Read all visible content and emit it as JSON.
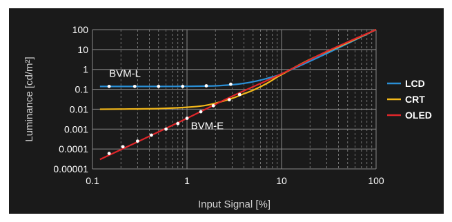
{
  "chart_data": {
    "type": "line",
    "xlabel": "Input Signal [%]",
    "ylabel": "Luminance [cd/m²]",
    "x_scale": "log",
    "y_scale": "log",
    "xlim": [
      0.1,
      100
    ],
    "ylim": [
      1e-05,
      100
    ],
    "x_ticks": [
      "0.1",
      "1",
      "10",
      "100"
    ],
    "y_ticks": [
      "100",
      "10",
      "1",
      "0.1",
      "0.01",
      "0.001",
      "0.0001",
      "0.00001"
    ],
    "grid": true,
    "legend_position": "right",
    "colors": {
      "background": "#1a1a1a",
      "grid": "#8a8a8a",
      "LCD": "#2a8fd6",
      "CRT": "#f3b81a",
      "OLED": "#e0262a",
      "marker": "#ffffff"
    },
    "series": [
      {
        "name": "LCD",
        "x": [
          0.12,
          0.2,
          0.5,
          1,
          2,
          3,
          4,
          5,
          6,
          8,
          10,
          20,
          50,
          100
        ],
        "y": [
          0.14,
          0.14,
          0.14,
          0.142,
          0.15,
          0.17,
          0.2,
          0.24,
          0.29,
          0.42,
          0.6,
          2.6,
          20,
          100
        ]
      },
      {
        "name": "CRT",
        "x": [
          0.12,
          0.2,
          0.5,
          1,
          1.5,
          2,
          3,
          4,
          5,
          7,
          10,
          20,
          50,
          100
        ],
        "y": [
          0.01,
          0.0102,
          0.0108,
          0.0125,
          0.015,
          0.02,
          0.035,
          0.06,
          0.09,
          0.2,
          0.55,
          3.2,
          22,
          100
        ]
      },
      {
        "name": "OLED",
        "x": [
          0.12,
          0.3,
          1,
          3,
          10,
          30,
          100
        ],
        "y": [
          3e-05,
          0.00023,
          0.0035,
          0.045,
          0.6,
          8,
          100
        ]
      }
    ],
    "marker_series": [
      {
        "label": "BVM-L",
        "x": [
          0.15,
          0.28,
          0.5,
          0.9,
          1.6,
          2.9
        ],
        "y": [
          0.14,
          0.14,
          0.14,
          0.14,
          0.15,
          0.18
        ]
      },
      {
        "label": "BVM-E",
        "x": [
          0.15,
          0.21,
          0.3,
          0.42,
          0.6,
          0.8,
          1.0,
          1.4,
          1.9,
          2.8,
          3.6
        ],
        "y": [
          6e-05,
          0.00013,
          0.00025,
          0.0005,
          0.001,
          0.0019,
          0.0035,
          0.0075,
          0.015,
          0.03,
          0.055
        ]
      }
    ]
  }
}
